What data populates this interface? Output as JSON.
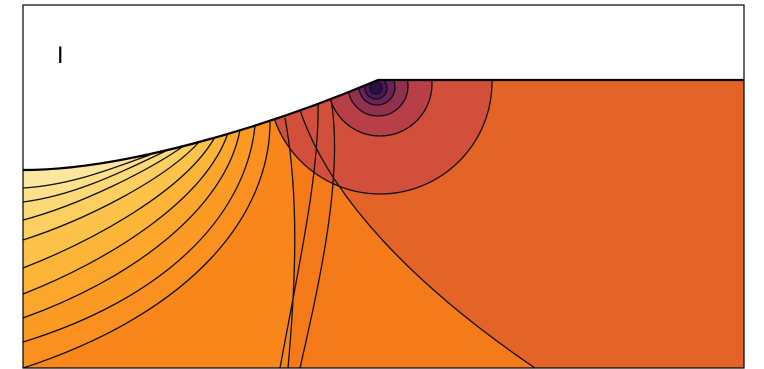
{
  "figure": {
    "panel_label": "I",
    "colors": {
      "background": "#ffffff",
      "frame": "#000000",
      "contour_line": "#111111",
      "field_far": "#e46327",
      "field_mid": "#f47a1a",
      "field_left": "#fa9d1f",
      "field_light": "#fde49a",
      "core_dark": "#2b1048",
      "core_purple": "#5b1e5e",
      "core_red": "#a3344d",
      "core_red_light": "#c44447"
    }
  }
}
